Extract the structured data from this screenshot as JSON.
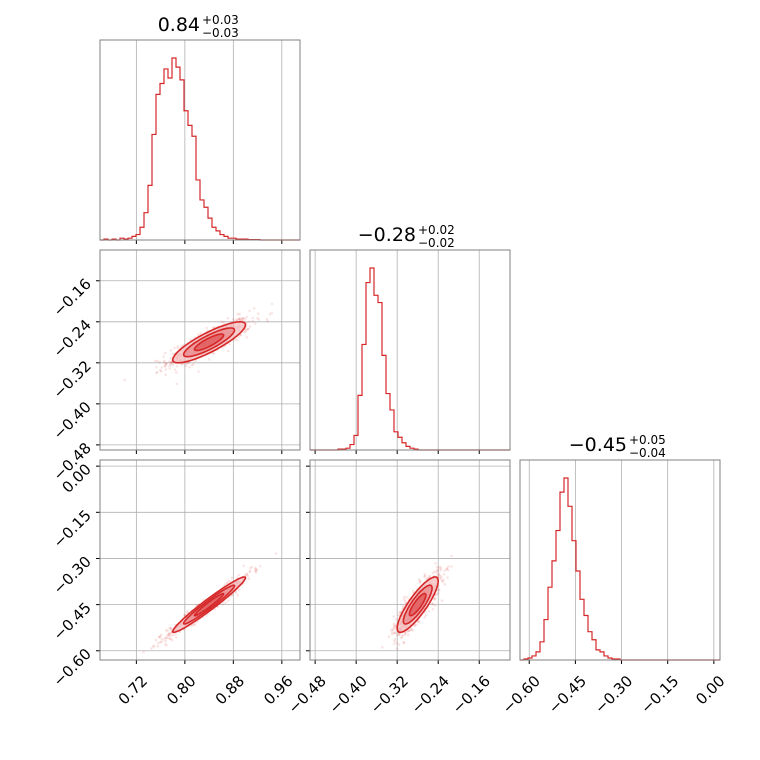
{
  "colors": {
    "series": "#d62728",
    "fill_light": "#f4c2c3",
    "fill_mid": "#ea8a8c",
    "grid": "#b0b0b0",
    "frame": "#808080"
  },
  "chart_data": {
    "type": "corner",
    "grid": true,
    "parameters": [
      {
        "median": "0.84",
        "plus": "+0.03",
        "minus": "−0.03",
        "range": [
          0.66,
          0.99
        ],
        "ticks": [
          0.72,
          0.8,
          0.88,
          0.96
        ],
        "tick_labels": [
          "0.72",
          "0.80",
          "0.88",
          "0.96"
        ]
      },
      {
        "median": "−0.28",
        "plus": "+0.02",
        "minus": "−0.02",
        "range": [
          -0.49,
          -0.1
        ],
        "ticks": [
          -0.48,
          -0.4,
          -0.32,
          -0.24,
          -0.16
        ],
        "tick_labels": [
          "−0.48",
          "−0.40",
          "−0.32",
          "−0.24",
          "−0.16"
        ]
      },
      {
        "median": "−0.45",
        "plus": "+0.05",
        "minus": "−0.04",
        "range": [
          -0.63,
          0.02
        ],
        "ticks": [
          -0.6,
          -0.45,
          -0.3,
          -0.15,
          0.0
        ],
        "tick_labels": [
          "−0.60",
          "−0.45",
          "−0.30",
          "−0.15",
          "0.00"
        ]
      }
    ],
    "histograms": [
      {
        "parameter": 0,
        "bin_start": 0.66,
        "bin_width": 0.0066,
        "counts": [
          0,
          0.005,
          0,
          0.005,
          0,
          0.01,
          0.005,
          0.01,
          0.02,
          0.03,
          0.07,
          0.15,
          0.3,
          0.58,
          0.8,
          0.86,
          0.94,
          0.89,
          1.0,
          0.95,
          0.88,
          0.71,
          0.63,
          0.57,
          0.33,
          0.22,
          0.18,
          0.12,
          0.07,
          0.05,
          0.03,
          0.02,
          0.01,
          0.01,
          0.005,
          0.005,
          0.005,
          0.002,
          0.002,
          0.002,
          0,
          0,
          0,
          0,
          0,
          0,
          0,
          0,
          0,
          0
        ]
      },
      {
        "parameter": 1,
        "bin_start": -0.49,
        "bin_width": 0.0078,
        "counts": [
          0,
          0,
          0,
          0,
          0,
          0,
          0,
          0.005,
          0.005,
          0.01,
          0.03,
          0.08,
          0.3,
          0.58,
          0.92,
          1.0,
          0.85,
          0.81,
          0.52,
          0.31,
          0.22,
          0.1,
          0.07,
          0.04,
          0.02,
          0.01,
          0.005,
          0,
          0,
          0,
          0,
          0,
          0,
          0,
          0,
          0,
          0,
          0,
          0,
          0,
          0,
          0,
          0,
          0,
          0,
          0,
          0,
          0,
          0,
          0
        ]
      },
      {
        "parameter": 2,
        "bin_start": -0.63,
        "bin_width": 0.013,
        "counts": [
          0,
          0.005,
          0.01,
          0.02,
          0.04,
          0.09,
          0.2,
          0.36,
          0.49,
          0.64,
          0.83,
          0.9,
          0.76,
          0.59,
          0.44,
          0.3,
          0.22,
          0.14,
          0.1,
          0.05,
          0.04,
          0.02,
          0.01,
          0.005,
          0.005,
          0,
          0,
          0,
          0,
          0,
          0,
          0,
          0,
          0,
          0,
          0,
          0,
          0,
          0,
          0,
          0,
          0,
          0,
          0,
          0,
          0,
          0,
          0,
          0,
          0
        ]
      }
    ],
    "scatter_2d": [
      {
        "x_param": 0,
        "y_param": 1,
        "center": [
          0.84,
          -0.28
        ],
        "std": [
          0.03,
          0.02
        ],
        "correlation": 0.85
      },
      {
        "x_param": 0,
        "y_param": 2,
        "center": [
          0.84,
          -0.45
        ],
        "std": [
          0.03,
          0.045
        ],
        "correlation": 0.97
      },
      {
        "x_param": 1,
        "y_param": 2,
        "center": [
          -0.28,
          -0.45
        ],
        "std": [
          0.02,
          0.045
        ],
        "correlation": 0.85
      }
    ]
  }
}
